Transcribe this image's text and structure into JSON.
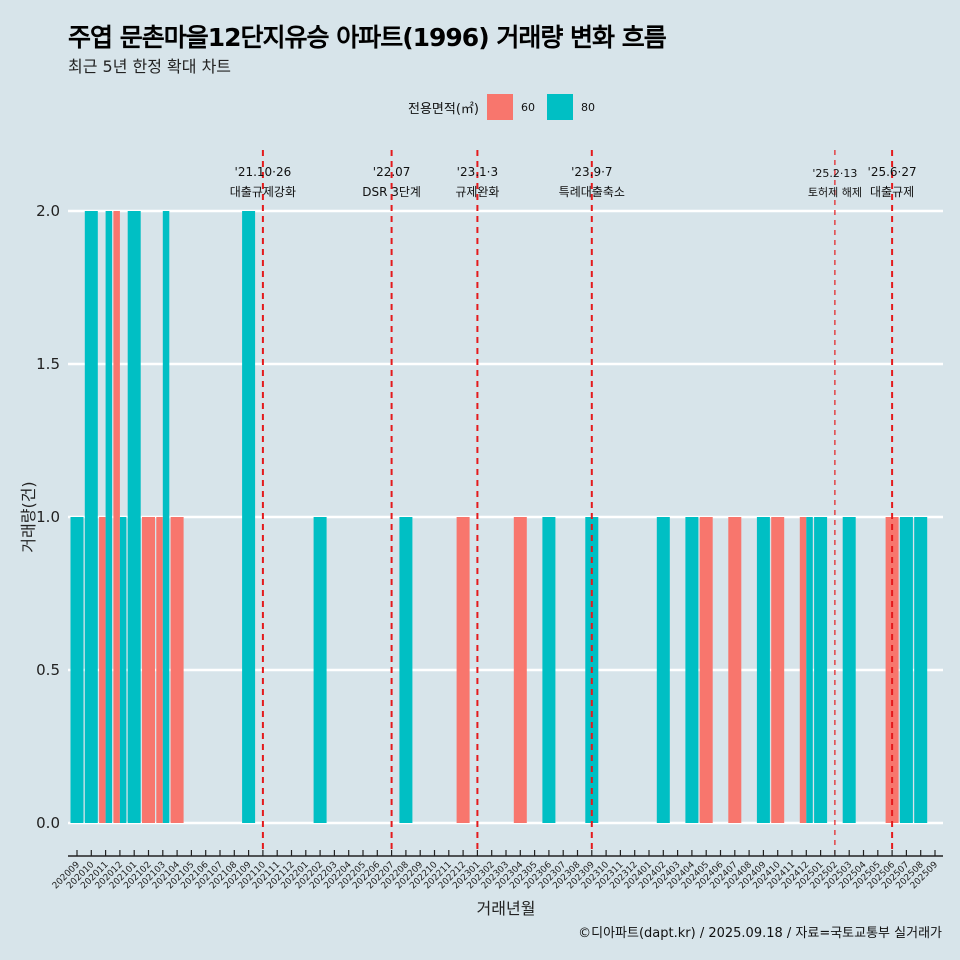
{
  "title": "주엽 문촌마을12단지유승 아파트(1996) 거래량 변화 흐름",
  "subtitle": "최근 5년 한정 확대 차트",
  "caption": "©디아파트(dapt.kr) / 2025.09.18 / 자료=국토교통부 실거래가",
  "colors": {
    "background": "#d7e4ea",
    "series_60": "#f8766d",
    "series_80": "#00bfc4",
    "event_line": "#e41a1c",
    "grid": "#ffffff"
  },
  "chart_data": {
    "type": "bar",
    "title": "주엽 문촌마을12단지유승 아파트(1996) 거래량 변화 흐름",
    "subtitle": "최근 5년 한정 확대 차트",
    "xlabel": "거래년월",
    "ylabel": "거래량(건)",
    "ylim": [
      0,
      2
    ],
    "yticks": [
      "0.0",
      "0.5",
      "1.0",
      "1.5",
      "2.0"
    ],
    "grid": true,
    "legend": {
      "title": "전용면적(㎡)",
      "position": "top",
      "entries": [
        "60",
        "80"
      ]
    },
    "categories": [
      "202009",
      "202010",
      "202011",
      "202012",
      "202101",
      "202102",
      "202103",
      "202104",
      "202105",
      "202106",
      "202107",
      "202108",
      "202109",
      "202110",
      "202111",
      "202112",
      "202201",
      "202202",
      "202203",
      "202204",
      "202205",
      "202206",
      "202207",
      "202208",
      "202209",
      "202210",
      "202211",
      "202212",
      "202301",
      "202302",
      "202303",
      "202304",
      "202305",
      "202306",
      "202307",
      "202308",
      "202309",
      "202310",
      "202311",
      "202312",
      "202401",
      "202402",
      "202403",
      "202404",
      "202405",
      "202406",
      "202407",
      "202408",
      "202409",
      "202410",
      "202411",
      "202412",
      "202501",
      "202502",
      "202503",
      "202504",
      "202505",
      "202506",
      "202507",
      "202508",
      "202509"
    ],
    "series": [
      {
        "name": "60",
        "values": [
          0,
          0,
          1,
          2,
          0,
          1,
          1,
          1,
          0,
          0,
          0,
          0,
          0,
          0,
          0,
          0,
          0,
          0,
          0,
          0,
          0,
          0,
          0,
          0,
          0,
          0,
          0,
          1,
          0,
          0,
          0,
          1,
          0,
          0,
          0,
          0,
          0,
          0,
          0,
          0,
          0,
          0,
          0,
          0,
          1,
          0,
          1,
          0,
          0,
          1,
          0,
          1,
          0,
          0,
          0,
          0,
          0,
          1,
          0,
          0,
          0
        ]
      },
      {
        "name": "80",
        "values": [
          1,
          2,
          2,
          1,
          2,
          0,
          2,
          0,
          0,
          0,
          0,
          0,
          2,
          0,
          0,
          0,
          0,
          1,
          0,
          0,
          0,
          0,
          0,
          1,
          0,
          0,
          0,
          0,
          0,
          0,
          0,
          0,
          0,
          1,
          0,
          0,
          1,
          0,
          0,
          0,
          0,
          1,
          0,
          1,
          0,
          0,
          0,
          0,
          1,
          0,
          0,
          1,
          1,
          0,
          1,
          0,
          0,
          0,
          1,
          1,
          0
        ]
      }
    ],
    "events": [
      {
        "month": "202110",
        "date": "'21.10·26",
        "label": "대출규제강화",
        "style": "bold"
      },
      {
        "month": "202207",
        "date": "'22.07",
        "label": "DSR 3단계",
        "style": "bold"
      },
      {
        "month": "202301",
        "date": "'23.1·3",
        "label": "규제완화",
        "style": "bold"
      },
      {
        "month": "202309",
        "date": "'23.9·7",
        "label": "특례대출축소",
        "style": "bold"
      },
      {
        "month": "202502",
        "date": "'25.2·13",
        "label": "토허제 해제",
        "style": "thin"
      },
      {
        "month": "202506",
        "date": "'25.6·27",
        "label": "대출규제",
        "style": "bold"
      }
    ]
  }
}
